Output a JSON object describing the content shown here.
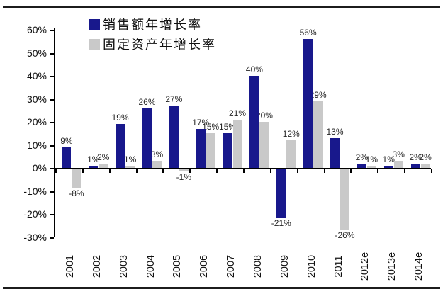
{
  "frame": {
    "background": "#ffffff",
    "rule_color": "#1c1c1c"
  },
  "chart_data": {
    "type": "bar",
    "title": "",
    "xlabel": "",
    "ylabel": "",
    "y_unit": "%",
    "ylim": [
      -30,
      60
    ],
    "y_ticks": [
      60,
      50,
      40,
      30,
      20,
      10,
      0,
      -10,
      -20,
      -30
    ],
    "grid": false,
    "legend_position": "top",
    "data_labels": true,
    "categories": [
      "2001",
      "2002",
      "2003",
      "2004",
      "2005",
      "2006",
      "2007",
      "2008",
      "2009",
      "2010",
      "2011",
      "2012e",
      "2013e",
      "2014e"
    ],
    "series": [
      {
        "name": "销售额年增长率",
        "color": "#18188c",
        "values": [
          9,
          1,
          19,
          26,
          27,
          17,
          15,
          40,
          -21,
          56,
          13,
          2,
          1,
          2
        ]
      },
      {
        "name": "固定资产年增长率",
        "color": "#c9c9c9",
        "values": [
          -8,
          2,
          1,
          3,
          -1,
          15,
          21,
          20,
          12,
          29,
          -26,
          1,
          3,
          2
        ]
      }
    ],
    "axis_color": "#000000",
    "tick_label_color": "#111111",
    "data_label_color": "#262626"
  }
}
